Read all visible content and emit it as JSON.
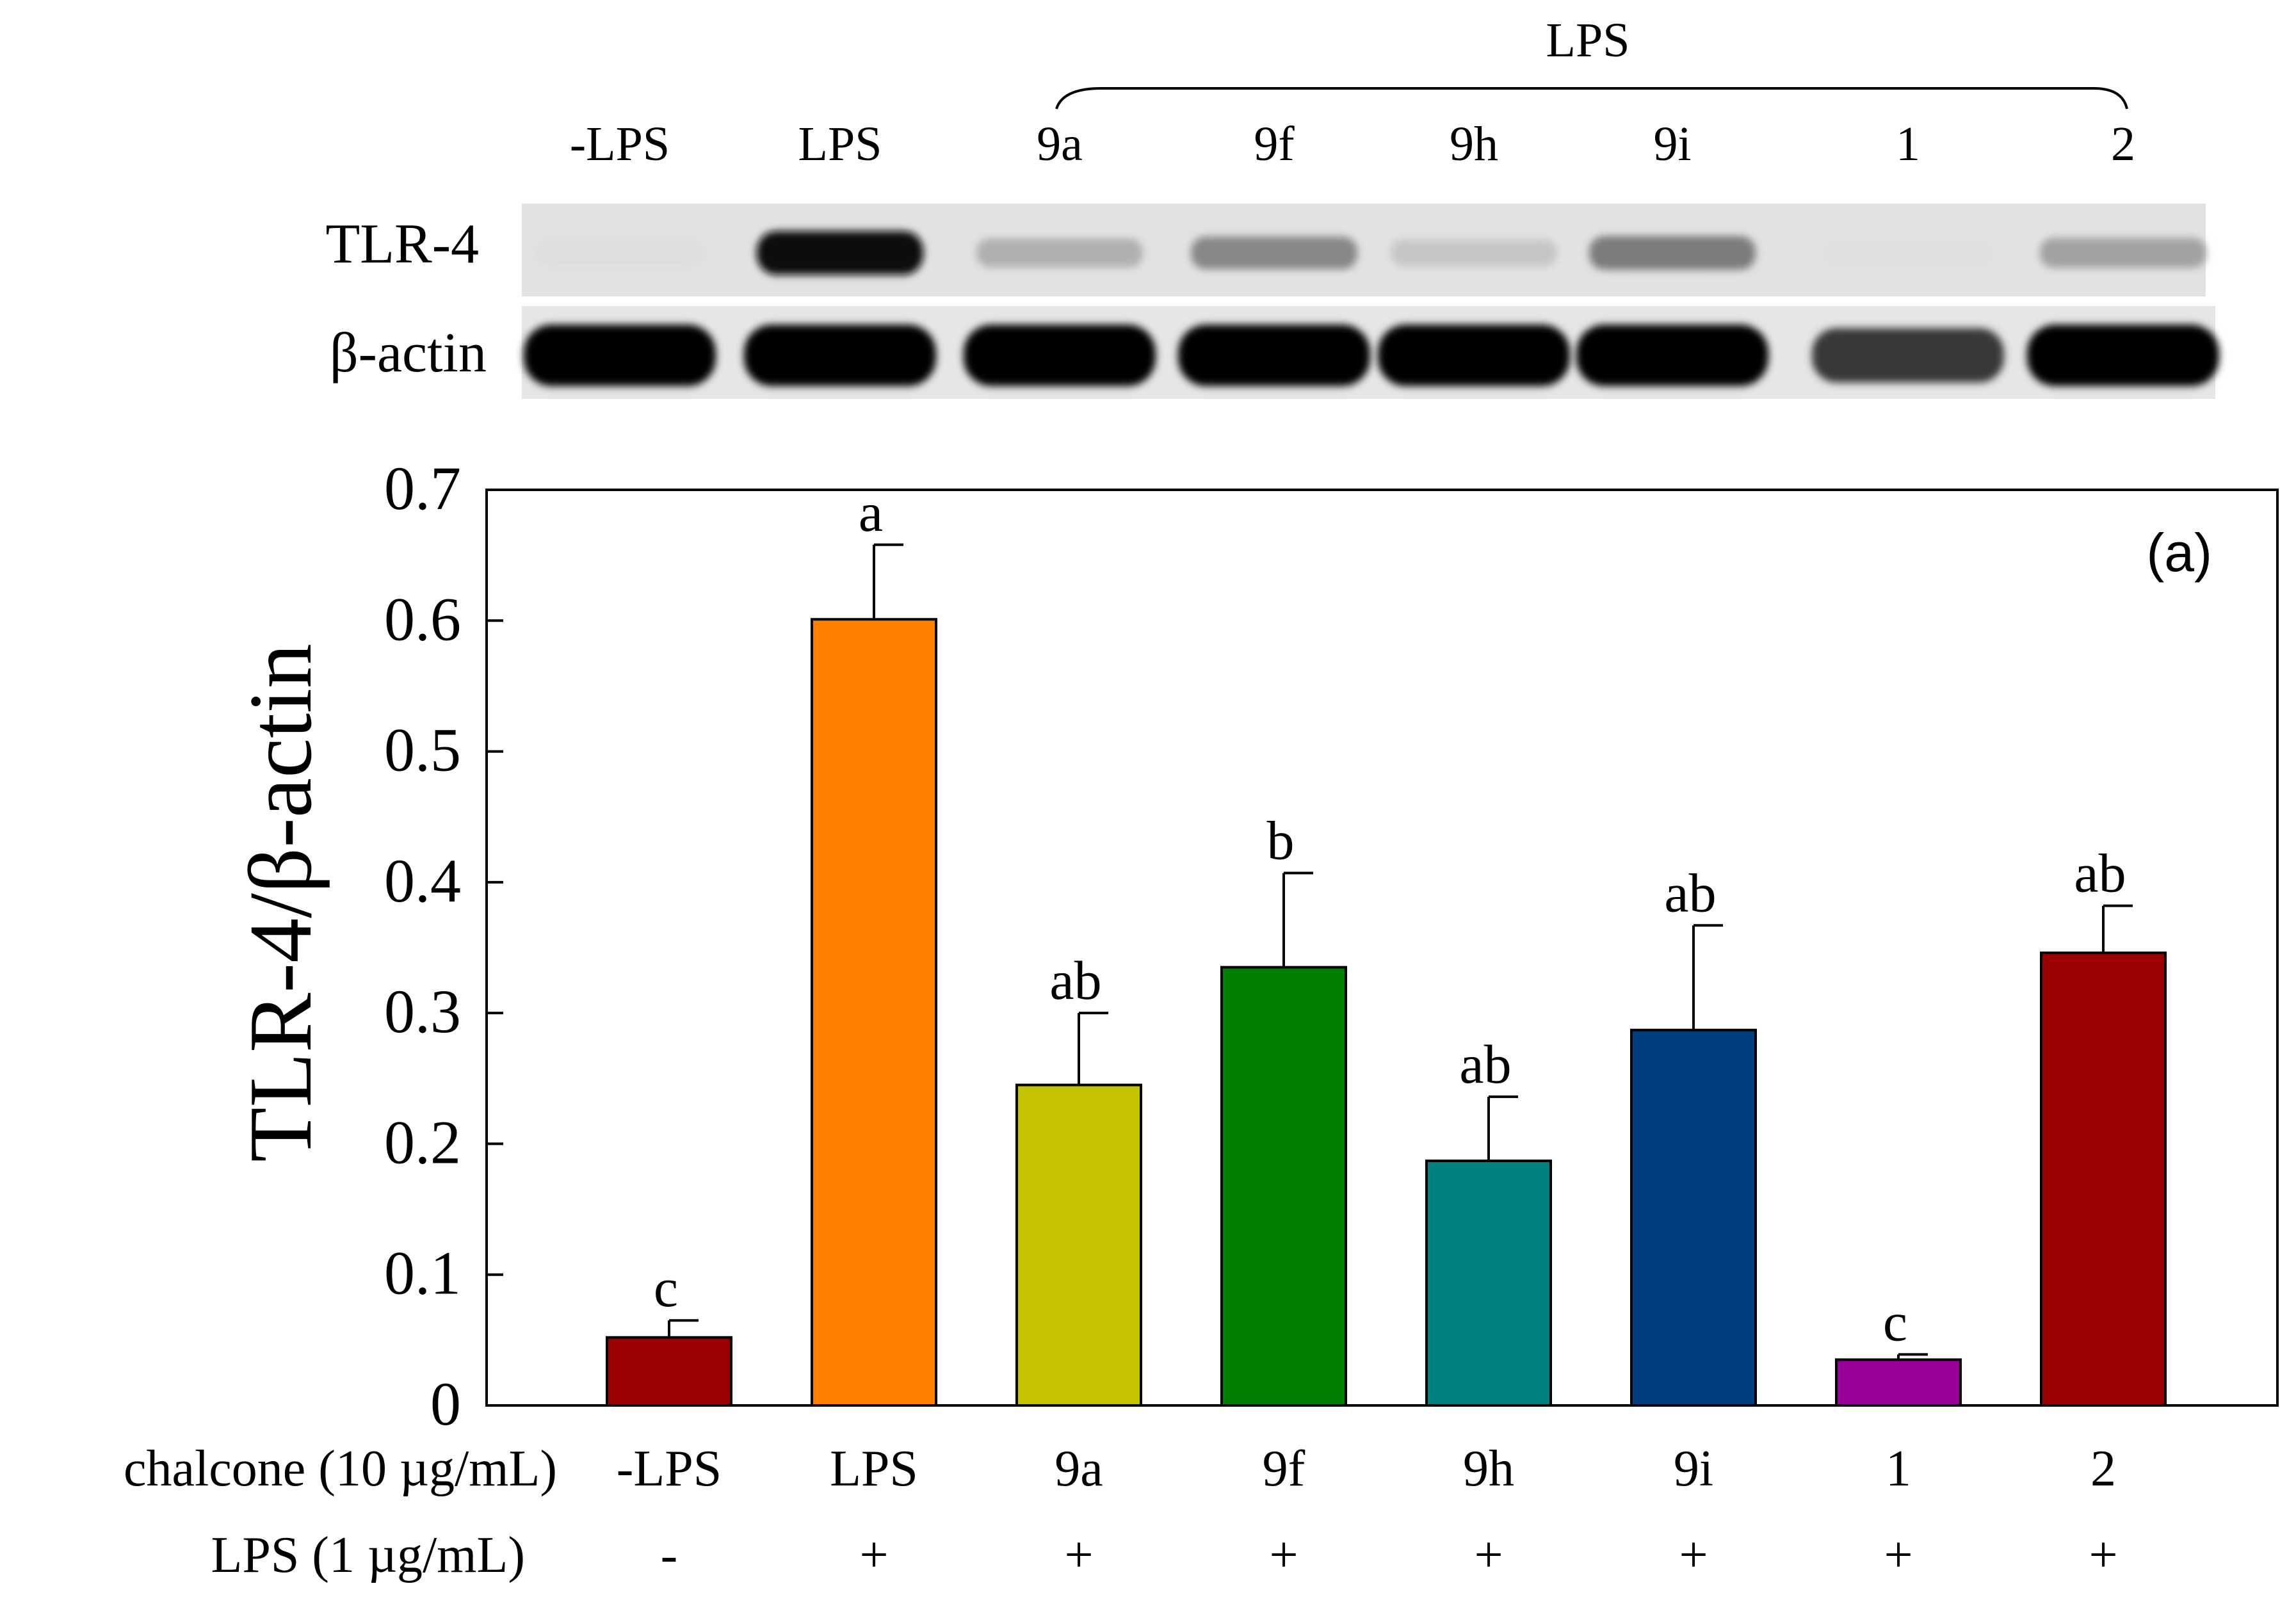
{
  "blot": {
    "lps_group_label": "LPS",
    "lane_labels": [
      "-LPS",
      "LPS",
      "9a",
      "9f",
      "9h",
      "9i",
      "1",
      "2"
    ],
    "rows": [
      {
        "label": "TLR-4",
        "intensities": [
          0.02,
          0.95,
          0.22,
          0.4,
          0.12,
          0.45,
          0.01,
          0.28
        ]
      },
      {
        "label": "β-actin",
        "intensities": [
          1.0,
          1.0,
          1.0,
          1.0,
          1.0,
          1.0,
          0.75,
          1.0
        ]
      }
    ]
  },
  "chart_data": {
    "type": "bar",
    "panel_label": "(a)",
    "ylabel": "TLR-4/β-actin",
    "xlabel": "",
    "ylim": [
      0,
      0.7
    ],
    "yticks": [
      0,
      0.1,
      0.2,
      0.3,
      0.4,
      0.5,
      0.6,
      0.7
    ],
    "ytick_labels": [
      "0",
      "0.1",
      "0.2",
      "0.3",
      "0.4",
      "0.5",
      "0.6",
      "0.7"
    ],
    "categories": [
      "-LPS",
      "LPS",
      "9a",
      "9f",
      "9h",
      "9i",
      "1",
      "2"
    ],
    "values": [
      0.052,
      0.601,
      0.245,
      0.335,
      0.187,
      0.287,
      0.035,
      0.346
    ],
    "errors": [
      0.013,
      0.057,
      0.055,
      0.072,
      0.049,
      0.08,
      0.004,
      0.036
    ],
    "significance": [
      "c",
      "a",
      "ab",
      "b",
      "ab",
      "ab",
      "c",
      "ab"
    ],
    "colors": [
      "#9b0000",
      "#ff8000",
      "#c3c300",
      "#008000",
      "#008080",
      "#003f7f",
      "#990099",
      "#990000"
    ],
    "grid": false,
    "treatment_rows": [
      {
        "label": "chalcone (10 µg/mL)",
        "values": [
          "-LPS",
          "LPS",
          "9a",
          "9f",
          "9h",
          "9i",
          "1",
          "2"
        ]
      },
      {
        "label": "LPS (1 µg/mL)",
        "values": [
          "-",
          "+",
          "+",
          "+",
          "+",
          "+",
          "+",
          "+"
        ]
      }
    ]
  }
}
